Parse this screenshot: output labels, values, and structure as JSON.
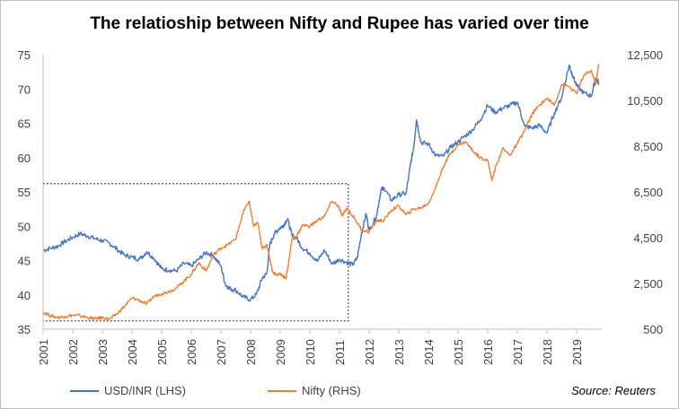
{
  "chart_data": {
    "type": "line",
    "title": "The relatioship between Nifty and Rupee has varied over time",
    "xlabel": "",
    "x_ticks": [
      "2001",
      "2002",
      "2003",
      "2004",
      "2005",
      "2006",
      "2007",
      "2008",
      "2009",
      "2010",
      "2011",
      "2012",
      "2013",
      "2014",
      "2015",
      "2016",
      "2017",
      "2018",
      "2019"
    ],
    "y_left": {
      "ticks": [
        35,
        40,
        45,
        50,
        55,
        60,
        65,
        70,
        75
      ],
      "ylim": [
        35,
        75
      ]
    },
    "y_right": {
      "ticks": [
        "500",
        "2,500",
        "4,500",
        "6,500",
        "8,500",
        "10,500",
        "12,500"
      ],
      "ylim": [
        500,
        12500
      ]
    },
    "highlight_box": {
      "x_from": 2001.0,
      "x_to": 2011.3,
      "y_left_from": 36.2,
      "y_left_to": 56.2,
      "style": "dashed"
    },
    "source": "Source: Reuters",
    "series": [
      {
        "name": "USD/INR (LHS)",
        "axis": "left",
        "color": "#4472C4",
        "points": [
          [
            2001.0,
            46.5
          ],
          [
            2001.25,
            46.8
          ],
          [
            2001.5,
            47.1
          ],
          [
            2001.75,
            47.8
          ],
          [
            2002.0,
            48.4
          ],
          [
            2002.25,
            48.9
          ],
          [
            2002.5,
            48.6
          ],
          [
            2002.75,
            48.2
          ],
          [
            2003.0,
            47.9
          ],
          [
            2003.25,
            47.5
          ],
          [
            2003.5,
            46.6
          ],
          [
            2003.75,
            45.8
          ],
          [
            2004.0,
            45.5
          ],
          [
            2004.25,
            45.2
          ],
          [
            2004.5,
            46.3
          ],
          [
            2004.75,
            45.3
          ],
          [
            2005.0,
            43.8
          ],
          [
            2005.25,
            43.6
          ],
          [
            2005.5,
            43.5
          ],
          [
            2005.75,
            44.6
          ],
          [
            2006.0,
            44.2
          ],
          [
            2006.25,
            45.2
          ],
          [
            2006.5,
            46.2
          ],
          [
            2006.75,
            45.7
          ],
          [
            2007.0,
            44.2
          ],
          [
            2007.15,
            41.5
          ],
          [
            2007.3,
            40.9
          ],
          [
            2007.5,
            40.7
          ],
          [
            2007.75,
            39.7
          ],
          [
            2008.0,
            39.3
          ],
          [
            2008.2,
            40.1
          ],
          [
            2008.4,
            42.5
          ],
          [
            2008.55,
            43.1
          ],
          [
            2008.65,
            47.3
          ],
          [
            2008.8,
            48.9
          ],
          [
            2008.95,
            49.6
          ],
          [
            2009.1,
            50.1
          ],
          [
            2009.25,
            51.1
          ],
          [
            2009.4,
            48.6
          ],
          [
            2009.55,
            48.3
          ],
          [
            2009.75,
            46.8
          ],
          [
            2010.0,
            46.1
          ],
          [
            2010.25,
            44.9
          ],
          [
            2010.5,
            46.5
          ],
          [
            2010.75,
            44.5
          ],
          [
            2011.0,
            45.2
          ],
          [
            2011.25,
            44.7
          ],
          [
            2011.45,
            44.4
          ],
          [
            2011.6,
            45.4
          ],
          [
            2011.75,
            49.1
          ],
          [
            2011.9,
            51.8
          ],
          [
            2012.0,
            49.4
          ],
          [
            2012.25,
            51.5
          ],
          [
            2012.4,
            55.3
          ],
          [
            2012.5,
            55.6
          ],
          [
            2012.75,
            53.8
          ],
          [
            2013.0,
            54.6
          ],
          [
            2013.25,
            54.8
          ],
          [
            2013.4,
            59.1
          ],
          [
            2013.5,
            61.4
          ],
          [
            2013.6,
            65.5
          ],
          [
            2013.75,
            62.2
          ],
          [
            2014.0,
            62.0
          ],
          [
            2014.25,
            60.3
          ],
          [
            2014.5,
            60.2
          ],
          [
            2014.75,
            61.5
          ],
          [
            2015.0,
            62.3
          ],
          [
            2015.25,
            63.2
          ],
          [
            2015.5,
            64.1
          ],
          [
            2015.75,
            65.5
          ],
          [
            2016.0,
            67.6
          ],
          [
            2016.25,
            66.6
          ],
          [
            2016.5,
            67.2
          ],
          [
            2016.75,
            67.6
          ],
          [
            2017.0,
            68.1
          ],
          [
            2017.25,
            64.6
          ],
          [
            2017.5,
            64.3
          ],
          [
            2017.75,
            64.7
          ],
          [
            2018.0,
            63.6
          ],
          [
            2018.25,
            66.5
          ],
          [
            2018.5,
            68.8
          ],
          [
            2018.75,
            73.5
          ],
          [
            2018.85,
            72.2
          ],
          [
            2019.0,
            70.5
          ],
          [
            2019.25,
            69.4
          ],
          [
            2019.5,
            69.0
          ],
          [
            2019.65,
            71.6
          ],
          [
            2019.75,
            70.9
          ]
        ]
      },
      {
        "name": "Nifty (RHS)",
        "axis": "right",
        "color": "#ED7D31",
        "points": [
          [
            2001.0,
            1250
          ],
          [
            2001.25,
            1090
          ],
          [
            2001.5,
            1010
          ],
          [
            2001.75,
            1060
          ],
          [
            2002.0,
            1110
          ],
          [
            2002.25,
            1090
          ],
          [
            2002.5,
            1010
          ],
          [
            2002.75,
            950
          ],
          [
            2003.0,
            1010
          ],
          [
            2003.25,
            940
          ],
          [
            2003.5,
            1170
          ],
          [
            2003.75,
            1500
          ],
          [
            2004.0,
            1870
          ],
          [
            2004.25,
            1760
          ],
          [
            2004.5,
            1600
          ],
          [
            2004.75,
            1950
          ],
          [
            2005.0,
            2050
          ],
          [
            2005.25,
            2150
          ],
          [
            2005.5,
            2300
          ],
          [
            2005.75,
            2600
          ],
          [
            2006.0,
            2900
          ],
          [
            2006.25,
            3400
          ],
          [
            2006.5,
            3050
          ],
          [
            2006.75,
            3750
          ],
          [
            2007.0,
            4050
          ],
          [
            2007.25,
            4200
          ],
          [
            2007.5,
            4450
          ],
          [
            2007.75,
            5600
          ],
          [
            2007.95,
            6100
          ],
          [
            2008.1,
            5000
          ],
          [
            2008.25,
            5150
          ],
          [
            2008.4,
            4000
          ],
          [
            2008.55,
            4200
          ],
          [
            2008.75,
            3000
          ],
          [
            2008.9,
            2850
          ],
          [
            2009.0,
            2950
          ],
          [
            2009.2,
            2700
          ],
          [
            2009.4,
            4450
          ],
          [
            2009.55,
            4550
          ],
          [
            2009.75,
            5050
          ],
          [
            2010.0,
            5000
          ],
          [
            2010.25,
            5250
          ],
          [
            2010.5,
            5450
          ],
          [
            2010.75,
            6100
          ],
          [
            2010.95,
            5900
          ],
          [
            2011.1,
            5450
          ],
          [
            2011.25,
            5800
          ],
          [
            2011.5,
            5350
          ],
          [
            2011.75,
            4850
          ],
          [
            2012.0,
            4750
          ],
          [
            2012.25,
            5250
          ],
          [
            2012.5,
            5250
          ],
          [
            2012.75,
            5700
          ],
          [
            2013.0,
            5900
          ],
          [
            2013.25,
            5500
          ],
          [
            2013.5,
            5750
          ],
          [
            2013.75,
            5800
          ],
          [
            2014.0,
            6000
          ],
          [
            2014.25,
            6700
          ],
          [
            2014.5,
            7600
          ],
          [
            2014.75,
            8200
          ],
          [
            2015.0,
            8550
          ],
          [
            2015.25,
            8700
          ],
          [
            2015.5,
            8300
          ],
          [
            2015.75,
            8000
          ],
          [
            2016.0,
            7900
          ],
          [
            2016.15,
            7000
          ],
          [
            2016.25,
            7500
          ],
          [
            2016.5,
            8400
          ],
          [
            2016.75,
            8100
          ],
          [
            2017.0,
            8600
          ],
          [
            2017.25,
            9200
          ],
          [
            2017.5,
            9900
          ],
          [
            2017.75,
            10300
          ],
          [
            2018.0,
            10600
          ],
          [
            2018.25,
            10300
          ],
          [
            2018.5,
            11200
          ],
          [
            2018.75,
            11100
          ],
          [
            2019.0,
            10800
          ],
          [
            2019.25,
            11600
          ],
          [
            2019.5,
            11800
          ],
          [
            2019.65,
            11200
          ],
          [
            2019.75,
            12100
          ]
        ]
      }
    ]
  }
}
